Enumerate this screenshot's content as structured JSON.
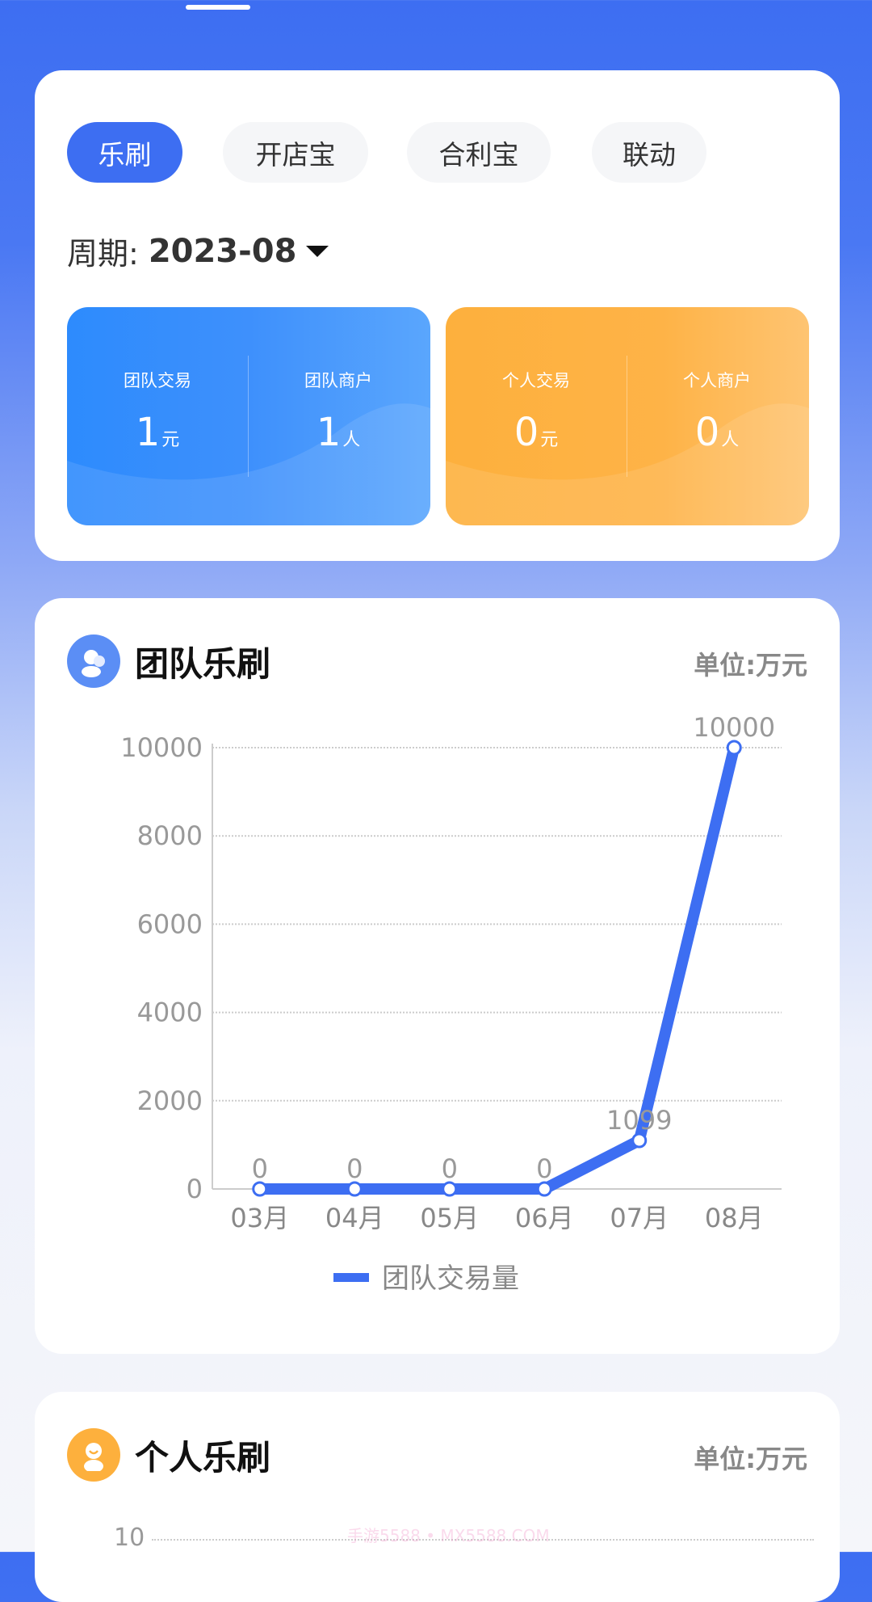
{
  "tabs": [
    {
      "label": "乐刷",
      "active": true
    },
    {
      "label": "开店宝",
      "active": false
    },
    {
      "label": "合利宝",
      "active": false
    },
    {
      "label": "联动",
      "active": false
    }
  ],
  "period": {
    "label": "周期:",
    "value": "2023-08"
  },
  "team_stats": [
    {
      "label": "团队交易",
      "value": "1",
      "unit": "元"
    },
    {
      "label": "团队商户",
      "value": "1",
      "unit": "人"
    }
  ],
  "personal_stats": [
    {
      "label": "个人交易",
      "value": "0",
      "unit": "元"
    },
    {
      "label": "个人商户",
      "value": "0",
      "unit": "人"
    }
  ],
  "team_section": {
    "title": "团队乐刷",
    "unit": "单位:万元"
  },
  "personal_section": {
    "title": "个人乐刷",
    "unit": "单位:万元",
    "y_top_tick": "10"
  },
  "watermark": "手游5588 • MX5588.COM",
  "colors": {
    "accent": "#3d6ef2",
    "blue_card": "#2d8bfd",
    "orange_card": "#fdb03d"
  },
  "chart_data": {
    "type": "line",
    "categories": [
      "03月",
      "04月",
      "05月",
      "06月",
      "07月",
      "08月"
    ],
    "series": [
      {
        "name": "团队交易量",
        "values": [
          0,
          0,
          0,
          0,
          1099,
          10000
        ]
      }
    ],
    "yticks": [
      "0",
      "2000",
      "4000",
      "6000",
      "8000",
      "10000"
    ],
    "ylim": [
      0,
      10000
    ],
    "grid": true,
    "legend": "bottom"
  }
}
